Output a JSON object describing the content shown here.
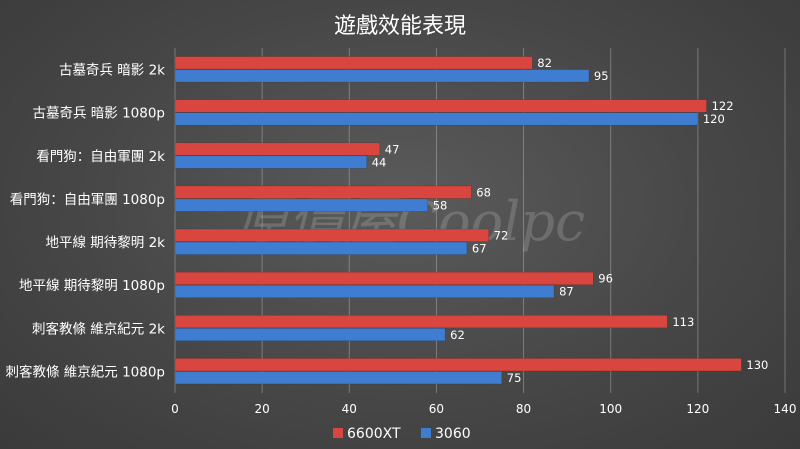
{
  "chart_data": {
    "type": "bar",
    "orientation": "horizontal",
    "title": "遊戲效能表現",
    "categories": [
      "古墓奇兵 暗影 2k",
      "古墓奇兵 暗影 1080p",
      "看門狗：自由軍團 2k",
      "看門狗：自由軍團 1080p",
      "地平線 期待黎明 2k",
      "地平線 期待黎明 1080p",
      "刺客教條 維京紀元 2k",
      "刺客教條 維京紀元 1080p"
    ],
    "series": [
      {
        "name": "6600XT",
        "color": "#d9463f",
        "values": [
          82,
          122,
          47,
          68,
          72,
          96,
          113,
          130
        ]
      },
      {
        "name": "3060",
        "color": "#3f7dd0",
        "values": [
          95,
          120,
          44,
          58,
          67,
          87,
          62,
          75
        ]
      }
    ],
    "xlim": [
      0,
      140
    ],
    "ticks": [
      0,
      20,
      40,
      60,
      80,
      100,
      120,
      140
    ],
    "grid": true,
    "legend": "bottom",
    "watermark": "原價屋Coolpc"
  }
}
